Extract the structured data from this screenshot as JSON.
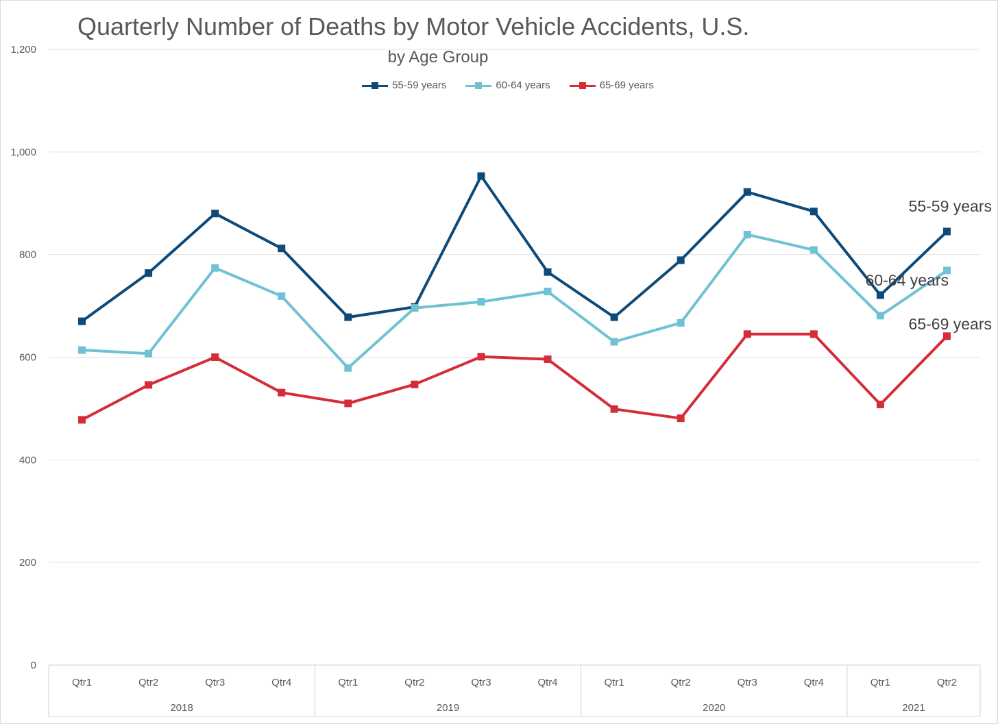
{
  "chart_data": {
    "type": "line",
    "title": "Quarterly Number of Deaths by Motor Vehicle Accidents, U.S.",
    "subtitle": "by Age Group",
    "xlabel": "",
    "ylabel": "",
    "ylim": [
      0,
      1200
    ],
    "yticks": [
      "0",
      "200",
      "400",
      "600",
      "800",
      "1,000",
      "1,200"
    ],
    "ytick_values": [
      0,
      200,
      400,
      600,
      800,
      1000,
      1200
    ],
    "categories": [
      "Qtr1",
      "Qtr2",
      "Qtr3",
      "Qtr4",
      "Qtr1",
      "Qtr2",
      "Qtr3",
      "Qtr4",
      "Qtr1",
      "Qtr2",
      "Qtr3",
      "Qtr4",
      "Qtr1",
      "Qtr2"
    ],
    "year_groups": [
      {
        "label": "2018",
        "count": 4
      },
      {
        "label": "2019",
        "count": 4
      },
      {
        "label": "2020",
        "count": 4
      },
      {
        "label": "2021",
        "count": 2
      }
    ],
    "grid": true,
    "legend_position": "top",
    "series": [
      {
        "name": "55-59 years",
        "color": "#0d4a7a",
        "end_label": "55-59 years",
        "values": [
          670,
          764,
          880,
          812,
          678,
          698,
          953,
          766,
          678,
          789,
          922,
          884,
          721,
          845
        ]
      },
      {
        "name": "60-64 years",
        "color": "#6fc1d4",
        "end_label": "60-64 years",
        "values": [
          614,
          607,
          774,
          719,
          579,
          696,
          708,
          728,
          630,
          667,
          839,
          809,
          681,
          769
        ]
      },
      {
        "name": "65-69 years",
        "color": "#d42d38",
        "end_label": "65-69 years",
        "values": [
          478,
          546,
          600,
          531,
          510,
          547,
          601,
          596,
          499,
          481,
          645,
          645,
          508,
          641
        ]
      }
    ]
  }
}
